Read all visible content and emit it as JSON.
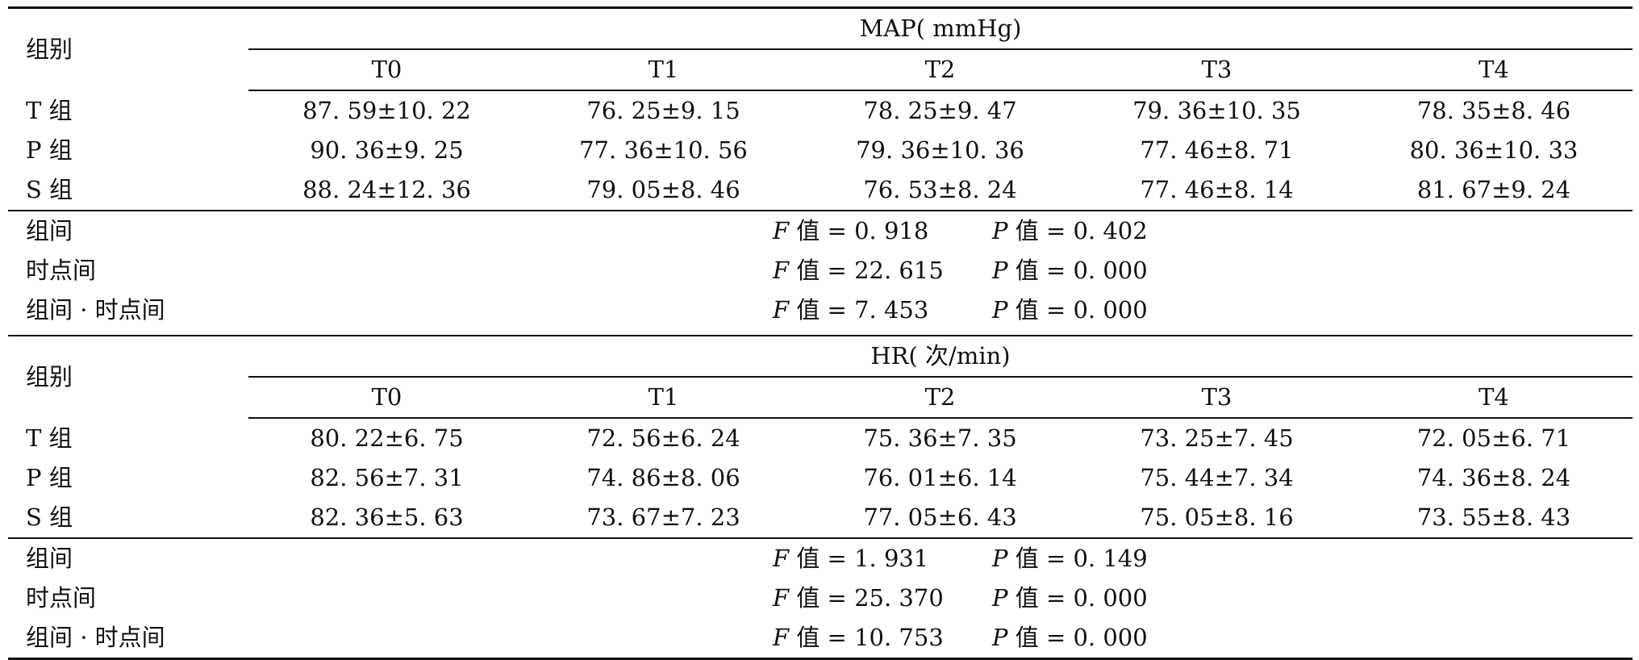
{
  "blocks": [
    {
      "group_header": "组别",
      "measure_title": "MAP( mmHg)",
      "columns": [
        "T0",
        "T1",
        "T2",
        "T3",
        "T4"
      ],
      "rows": [
        {
          "group": "T 组",
          "values": [
            "87. 59±10. 22",
            "76. 25±9. 15",
            "78. 25±9. 47",
            "79. 36±10. 35",
            "78. 35±8. 46"
          ]
        },
        {
          "group": "P 组",
          "values": [
            "90. 36±9. 25",
            "77. 36±10. 56",
            "79. 36±10. 36",
            "77. 46±8. 71",
            "80. 36±10. 33"
          ]
        },
        {
          "group": "S 组",
          "values": [
            "88. 24±12. 36",
            "79. 05±8. 46",
            "76. 53±8. 24",
            "77. 46±8. 14",
            "81. 67±9. 24"
          ]
        }
      ],
      "stats": [
        {
          "label": "组间",
          "f_sym": "F",
          "f_text": " 值 = 0. 918",
          "p_sym": "P",
          "p_text": " 值 = 0. 402"
        },
        {
          "label": "时点间",
          "f_sym": "F",
          "f_text": " 值 = 22. 615",
          "p_sym": "P",
          "p_text": " 值 = 0. 000"
        },
        {
          "label": "组间 · 时点间",
          "f_sym": "F",
          "f_text": " 值 = 7. 453",
          "p_sym": "P",
          "p_text": " 值 = 0. 000"
        }
      ]
    },
    {
      "group_header": "组别",
      "measure_title": "HR( 次/min)",
      "columns": [
        "T0",
        "T1",
        "T2",
        "T3",
        "T4"
      ],
      "rows": [
        {
          "group": "T 组",
          "values": [
            "80. 22±6. 75",
            "72. 56±6. 24",
            "75. 36±7. 35",
            "73. 25±7. 45",
            "72. 05±6. 71"
          ]
        },
        {
          "group": "P 组",
          "values": [
            "82. 56±7. 31",
            "74. 86±8. 06",
            "76. 01±6. 14",
            "75. 44±7. 34",
            "74. 36±8. 24"
          ]
        },
        {
          "group": "S 组",
          "values": [
            "82. 36±5. 63",
            "73. 67±7. 23",
            "77. 05±6. 43",
            "75. 05±8. 16",
            "73. 55±8. 43"
          ]
        }
      ],
      "stats": [
        {
          "label": "组间",
          "f_sym": "F",
          "f_text": " 值 = 1. 931",
          "p_sym": "P",
          "p_text": " 值 = 0. 149"
        },
        {
          "label": "时点间",
          "f_sym": "F",
          "f_text": " 值 = 25. 370",
          "p_sym": "P",
          "p_text": " 值 = 0. 000"
        },
        {
          "label": "组间 · 时点间",
          "f_sym": "F",
          "f_text": " 值 = 10. 753",
          "p_sym": "P",
          "p_text": " 值 = 0. 000"
        }
      ]
    }
  ]
}
